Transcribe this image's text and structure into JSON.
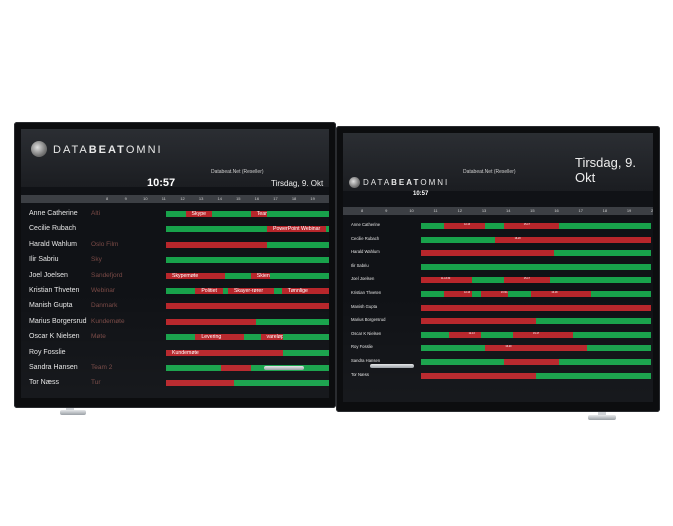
{
  "brand": {
    "logo_left": "DATA",
    "logo_mid": "BEAT",
    "logo_right": "OMNI"
  },
  "left_screen": {
    "company": "Databeat.Net (Reseller)",
    "clock": "10:57",
    "date": "Tirsdag, 9. Okt",
    "hours": [
      "8",
      "9",
      "10",
      "11",
      "12",
      "13",
      "14",
      "15",
      "16",
      "17",
      "18",
      "19",
      "20"
    ],
    "people": [
      {
        "name": "Anne Catherine",
        "location": "Alti"
      },
      {
        "name": "Cecilie Rubach",
        "location": ""
      },
      {
        "name": "Harald Wahlum",
        "location": "Oslo Film"
      },
      {
        "name": "Ilir Sabriu",
        "location": "Sky"
      },
      {
        "name": "Joel Joelsen",
        "location": "Sandefjord"
      },
      {
        "name": "Kristian Thveten",
        "location": "Webinar"
      },
      {
        "name": "Manish Gupta",
        "location": "Danmark"
      },
      {
        "name": "Marius Borgersrud",
        "location": "Kundemøte"
      },
      {
        "name": "Oscar K Nielsen",
        "location": "Møte"
      },
      {
        "name": "Roy Fosslie",
        "location": ""
      },
      {
        "name": "Sandra Hansen",
        "location": "Team 2"
      },
      {
        "name": "Tor Næss",
        "location": "Tur"
      }
    ],
    "events": [
      "Skype",
      "Team 2",
      "PowerPoint Webinar",
      "Skypemøte",
      "Skien",
      "Politiet",
      "Skayer-rører",
      "Tønnlige",
      "Levering",
      "vareløpr",
      "Kundemøte"
    ]
  },
  "right_screen": {
    "company": "Databeat.Net (Reseller)",
    "clock": "10:57",
    "date": "Tirsdag, 9. Okt",
    "hours": [
      "8",
      "9",
      "10",
      "11",
      "12",
      "13",
      "14",
      "15",
      "16",
      "17",
      "18",
      "19",
      "20"
    ],
    "people": [
      {
        "name": "Anne Catherine"
      },
      {
        "name": "Cecilie Rubach"
      },
      {
        "name": "Harald Wahlum"
      },
      {
        "name": "Ilir Sabriu"
      },
      {
        "name": "Joel Joelsen"
      },
      {
        "name": "Kristian Thveten"
      },
      {
        "name": "Manish Gupta"
      },
      {
        "name": "Marius Borgersrud"
      },
      {
        "name": "Oscar K Nielsen"
      },
      {
        "name": "Roy Fosslie"
      },
      {
        "name": "Sandra Hansen"
      },
      {
        "name": "Tor Næss"
      }
    ],
    "events": [
      "12-13",
      "15-17",
      "16-20",
      "11-13:30",
      "15-17",
      "12-13",
      "13:30-15",
      "16-18",
      "12-13",
      "15-17",
      "16-20"
    ]
  },
  "colors": {
    "busy": "#b8262b",
    "free": "#18a24b",
    "bezel": "#0c0d0f"
  }
}
